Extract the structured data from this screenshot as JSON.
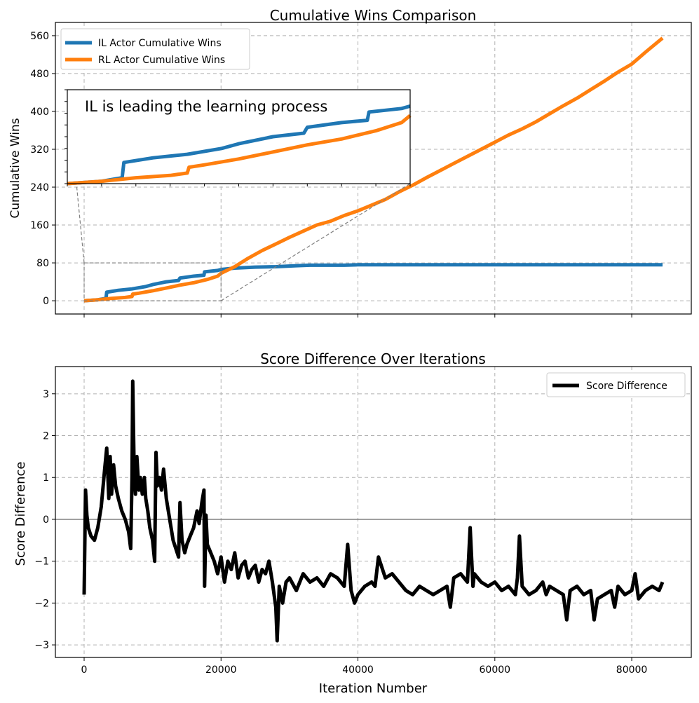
{
  "colors": {
    "il": "#1f77b4",
    "rl": "#ff7f0e",
    "diff": "#000000",
    "grid": "#b0b0b0",
    "zero": "#808080",
    "connector": "#808080"
  },
  "chart_data": [
    {
      "type": "line",
      "title": "Cumulative Wins Comparison",
      "xlabel": "",
      "ylabel": "Cumulative Wins",
      "xlim": [
        -4200,
        88700
      ],
      "ylim": [
        -28,
        588
      ],
      "xticks": [
        0,
        20000,
        40000,
        60000,
        80000
      ],
      "yticks": [
        0,
        80,
        160,
        240,
        320,
        400,
        480,
        560
      ],
      "ytick_labels": [
        "0",
        "80",
        "160",
        "240",
        "320",
        "400",
        "480",
        "560"
      ],
      "grid": true,
      "legend": "top-left",
      "series": [
        {
          "name": "IL Actor Cumulative Wins",
          "color_key": "il",
          "x": [
            0,
            2000,
            3200,
            3300,
            5000,
            7000,
            9000,
            10000,
            12000,
            13800,
            14000,
            16000,
            17500,
            17600,
            19500,
            20000,
            22000,
            25000,
            28000,
            31000,
            33000,
            36000,
            38000,
            40000,
            60000,
            84500
          ],
          "y": [
            0,
            2,
            5,
            18,
            22,
            25,
            30,
            34,
            40,
            43,
            48,
            52,
            54,
            61,
            64,
            66,
            69,
            71,
            72,
            74,
            75,
            75,
            75,
            76,
            76,
            76
          ]
        },
        {
          "name": "RL Actor Cumulative Wins",
          "color_key": "rl",
          "x": [
            0,
            2000,
            4000,
            6000,
            7000,
            7100,
            8000,
            10000,
            12000,
            14000,
            16000,
            18000,
            19500,
            20000,
            22000,
            24000,
            26000,
            28000,
            30000,
            32000,
            34000,
            36000,
            38000,
            40000,
            42000,
            44000,
            46000,
            48000,
            50000,
            52000,
            54000,
            56000,
            58000,
            60000,
            62000,
            64000,
            66000,
            68000,
            70000,
            72000,
            74000,
            76000,
            78000,
            80000,
            82000,
            84500
          ],
          "y": [
            0,
            2,
            5,
            7,
            9,
            14,
            16,
            21,
            27,
            33,
            38,
            45,
            52,
            58,
            72,
            90,
            106,
            120,
            134,
            147,
            160,
            168,
            180,
            190,
            202,
            214,
            230,
            244,
            260,
            275,
            290,
            305,
            320,
            335,
            350,
            363,
            378,
            395,
            412,
            428,
            446,
            464,
            483,
            500,
            525,
            555
          ]
        }
      ],
      "inset": {
        "text": "IL is leading the learning process",
        "xlim": [
          0,
          20000
        ],
        "ylim": [
          0,
          80
        ],
        "indicate_box": {
          "x": [
            0,
            20000
          ],
          "y": [
            0,
            80
          ]
        }
      }
    },
    {
      "type": "line",
      "title": "Score Difference Over Iterations",
      "xlabel": "Iteration Number",
      "ylabel": "Score Difference",
      "xlim": [
        -4200,
        88700
      ],
      "ylim": [
        -3.3,
        3.65
      ],
      "xticks": [
        0,
        20000,
        40000,
        60000,
        80000
      ],
      "xtick_labels": [
        "0",
        "20000",
        "40000",
        "60000",
        "80000"
      ],
      "yticks": [
        -3,
        -2,
        -1,
        0,
        1,
        2,
        3
      ],
      "ytick_labels": [
        "−3",
        "−2",
        "−1",
        "0",
        "1",
        "2",
        "3"
      ],
      "grid": true,
      "legend": "top-right",
      "hline": 0,
      "series": [
        {
          "name": "Score Difference",
          "color_key": "diff",
          "x": [
            0,
            200,
            400,
            600,
            1000,
            1500,
            2000,
            2500,
            3000,
            3300,
            3600,
            3800,
            4000,
            4300,
            4600,
            5000,
            5500,
            6000,
            6500,
            6800,
            7000,
            7100,
            7300,
            7500,
            7700,
            8000,
            8200,
            8500,
            8800,
            9000,
            9300,
            9600,
            10000,
            10300,
            10500,
            10700,
            11000,
            11300,
            11600,
            12000,
            12300,
            12700,
            13000,
            13400,
            13800,
            14000,
            14300,
            14700,
            15000,
            15500,
            16000,
            16500,
            16800,
            17200,
            17500,
            17600,
            17800,
            18000,
            18500,
            19000,
            19500,
            20000,
            20500,
            21000,
            21500,
            22000,
            22500,
            23000,
            23500,
            24000,
            24500,
            25000,
            25500,
            26000,
            26500,
            27000,
            27500,
            28000,
            28200,
            28500,
            29000,
            29500,
            30000,
            31000,
            32000,
            33000,
            34000,
            35000,
            36000,
            37000,
            38000,
            38500,
            39000,
            39500,
            40000,
            41000,
            42000,
            42500,
            43000,
            44000,
            45000,
            46000,
            47000,
            48000,
            49000,
            50000,
            51000,
            52000,
            53000,
            53500,
            54000,
            55000,
            56000,
            56400,
            56800,
            57000,
            58000,
            59000,
            60000,
            61000,
            62000,
            63000,
            63300,
            63600,
            64000,
            65000,
            66000,
            67000,
            67500,
            68000,
            69000,
            70000,
            70500,
            71000,
            72000,
            73000,
            74000,
            74500,
            75000,
            76000,
            77000,
            77500,
            78000,
            79000,
            80000,
            80500,
            81000,
            82000,
            83000,
            84000,
            84500
          ],
          "y": [
            -1.8,
            0.7,
            0.1,
            -0.2,
            -0.4,
            -0.5,
            -0.2,
            0.3,
            1.2,
            1.7,
            0.5,
            1.5,
            0.6,
            1.3,
            0.8,
            0.5,
            0.2,
            0.0,
            -0.3,
            -0.7,
            1.0,
            3.3,
            1.2,
            0.6,
            1.5,
            0.7,
            1.0,
            0.6,
            1.0,
            0.5,
            0.2,
            -0.2,
            -0.5,
            -1.0,
            1.6,
            0.8,
            1.0,
            0.7,
            1.2,
            0.5,
            0.2,
            -0.2,
            -0.5,
            -0.7,
            -0.9,
            0.4,
            -0.5,
            -0.8,
            -0.6,
            -0.4,
            -0.2,
            0.2,
            -0.1,
            0.4,
            0.7,
            -1.6,
            0.1,
            -0.6,
            -0.8,
            -1.0,
            -1.3,
            -0.9,
            -1.5,
            -1.0,
            -1.2,
            -0.8,
            -1.4,
            -1.1,
            -1.0,
            -1.4,
            -1.2,
            -1.1,
            -1.5,
            -1.2,
            -1.3,
            -1.0,
            -1.5,
            -2.1,
            -2.9,
            -1.6,
            -2.0,
            -1.5,
            -1.4,
            -1.7,
            -1.3,
            -1.5,
            -1.4,
            -1.6,
            -1.3,
            -1.4,
            -1.6,
            -0.6,
            -1.7,
            -2.0,
            -1.8,
            -1.6,
            -1.5,
            -1.6,
            -0.9,
            -1.4,
            -1.3,
            -1.5,
            -1.7,
            -1.8,
            -1.6,
            -1.7,
            -1.8,
            -1.7,
            -1.6,
            -2.1,
            -1.4,
            -1.3,
            -1.5,
            -0.2,
            -1.6,
            -1.3,
            -1.5,
            -1.6,
            -1.5,
            -1.7,
            -1.6,
            -1.8,
            -1.4,
            -0.4,
            -1.6,
            -1.8,
            -1.7,
            -1.5,
            -1.8,
            -1.6,
            -1.7,
            -1.8,
            -2.4,
            -1.7,
            -1.6,
            -1.8,
            -1.7,
            -2.4,
            -1.9,
            -1.8,
            -1.7,
            -2.1,
            -1.6,
            -1.8,
            -1.7,
            -1.3,
            -1.9,
            -1.7,
            -1.6,
            -1.7,
            -1.5
          ]
        }
      ]
    }
  ]
}
